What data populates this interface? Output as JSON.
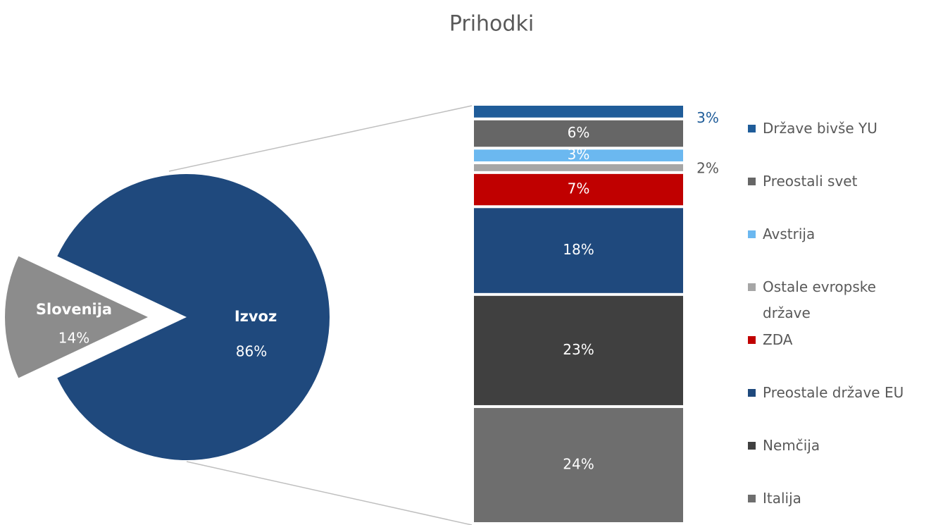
{
  "chart_data": {
    "type": "bar-of-pie",
    "title": "Prihodki",
    "pie": {
      "categories": [
        "Slovenija",
        "Izvoz"
      ],
      "values": [
        14,
        86
      ],
      "value_labels": [
        "14%",
        "86%"
      ],
      "colors": [
        "#8c8c8c",
        "#1f497d"
      ]
    },
    "series": [
      {
        "name": "Države bivše YU",
        "color": "#1f5c99",
        "values": [
          3
        ],
        "value_labels": [
          "3%"
        ]
      },
      {
        "name": "Preostali svet",
        "color": "#666666",
        "values": [
          6
        ],
        "value_labels": [
          "6%"
        ]
      },
      {
        "name": "Avstrija",
        "color": "#6bb8f0",
        "values": [
          3
        ],
        "value_labels": [
          "3%"
        ]
      },
      {
        "name": "Ostale evropske države",
        "color": "#a6a6a6",
        "values": [
          2
        ],
        "value_labels": [
          "2%"
        ]
      },
      {
        "name": "ZDA",
        "color": "#c00000",
        "values": [
          7
        ],
        "value_labels": [
          "7%"
        ]
      },
      {
        "name": "Preostale države EU",
        "color": "#1f497d",
        "values": [
          18
        ],
        "value_labels": [
          "18%"
        ]
      },
      {
        "name": "Nemčija",
        "color": "#404040",
        "values": [
          23
        ],
        "value_labels": [
          "23%"
        ]
      },
      {
        "name": "Italija",
        "color": "#6e6e6e",
        "values": [
          24
        ],
        "value_labels": [
          "24%"
        ]
      }
    ],
    "legend": "right"
  }
}
